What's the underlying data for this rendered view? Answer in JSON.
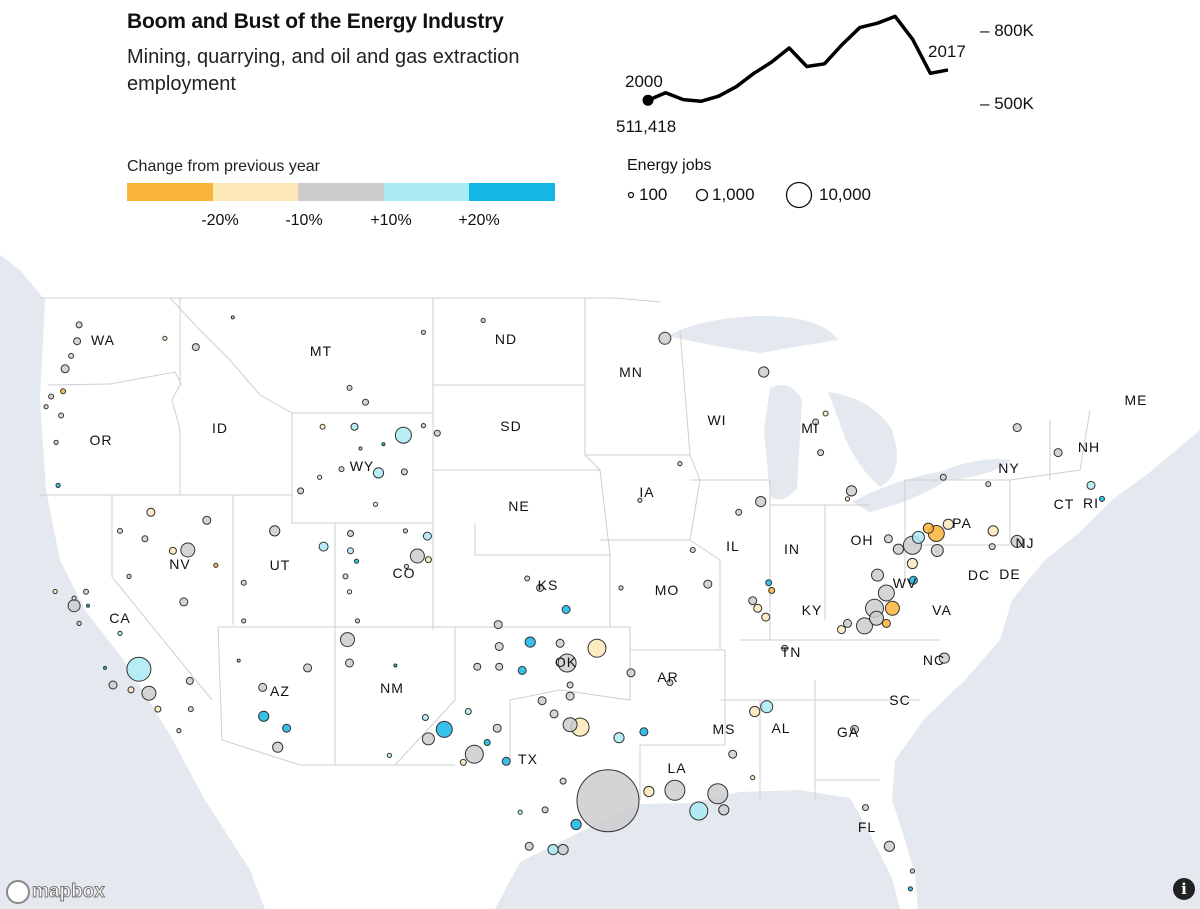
{
  "header": {
    "title": "Boom and Bust of the Energy Industry",
    "subtitle": "Mining, quarrying, and oil and gas extraction employment"
  },
  "color_legend": {
    "title": "Change from previous year",
    "ticks": [
      "-20%",
      "-10%",
      "+10%",
      "+20%"
    ],
    "colors": [
      "#FBB43B",
      "#FDE9B8",
      "#CCCCCC",
      "#AAEBF3",
      "#14B6E6"
    ]
  },
  "size_legend": {
    "title": "Energy jobs",
    "labels": [
      "100",
      "1,000",
      "10,000"
    ],
    "values": [
      100,
      1000,
      10000
    ]
  },
  "sparkline": {
    "start_label": "2000",
    "end_label": "2017",
    "start_value_label": "511,418",
    "axis_labels": [
      "800K",
      "500K"
    ]
  },
  "chart_data": [
    {
      "type": "line",
      "title": "Mining, quarrying, and oil and gas extraction employment",
      "x": [
        2000,
        2001,
        2002,
        2003,
        2004,
        2005,
        2006,
        2007,
        2008,
        2009,
        2010,
        2011,
        2012,
        2013,
        2014,
        2015,
        2016,
        2017
      ],
      "values": [
        511418,
        542000,
        514000,
        507000,
        528000,
        567000,
        622000,
        668000,
        726000,
        650000,
        661000,
        740000,
        810000,
        828000,
        856000,
        761000,
        622000,
        636000
      ],
      "yticks": [
        500000,
        800000
      ],
      "ytick_labels": [
        "500K",
        "800K"
      ],
      "grid": false
    },
    {
      "type": "scatter",
      "subtype": "bubble-map",
      "fields": [
        "lon",
        "lat",
        "jobs",
        "change_pct"
      ],
      "points": [
        [
          -121.85,
          48.15,
          150,
          0
        ],
        [
          -121.95,
          47.6,
          240,
          0
        ],
        [
          -122.25,
          47.1,
          90,
          0
        ],
        [
          -122.55,
          46.66,
          350,
          0
        ],
        [
          -122.65,
          45.88,
          90,
          -25
        ],
        [
          -123.25,
          45.7,
          90,
          0
        ],
        [
          -123.5,
          45.34,
          50,
          0
        ],
        [
          -122.75,
          45.03,
          90,
          0
        ],
        [
          -123,
          44.07,
          50,
          0
        ],
        [
          -122.9,
          42.5,
          50,
          25
        ],
        [
          -117.55,
          47.7,
          50,
          -15
        ],
        [
          -116.0,
          47.4,
          240,
          0
        ],
        [
          -114.15,
          48.4,
          20,
          0
        ],
        [
          -104.6,
          47.9,
          50,
          0
        ],
        [
          -108.3,
          46.0,
          90,
          0
        ],
        [
          -107.5,
          45.5,
          150,
          0
        ],
        [
          -109.65,
          44.63,
          90,
          -15
        ],
        [
          -108.05,
          44.63,
          240,
          15
        ],
        [
          -105.6,
          44.33,
          2700,
          15
        ],
        [
          -104.6,
          44.67,
          50,
          0
        ],
        [
          -103.9,
          44.4,
          150,
          0
        ],
        [
          -107.75,
          43.85,
          20,
          0
        ],
        [
          -106.6,
          44.0,
          20,
          25
        ],
        [
          -108.7,
          43.1,
          90,
          0
        ],
        [
          -106.85,
          42.96,
          700,
          15
        ],
        [
          -105.55,
          43.0,
          150,
          0
        ],
        [
          -109.8,
          42.8,
          50,
          -15
        ],
        [
          -110.75,
          42.3,
          150,
          0
        ],
        [
          -107.0,
          41.8,
          50,
          -15
        ],
        [
          -118.25,
          41.5,
          350,
          -15
        ],
        [
          -115.45,
          41.2,
          350,
          0
        ],
        [
          -119.8,
          40.8,
          90,
          0
        ],
        [
          -118.55,
          40.5,
          150,
          0
        ],
        [
          -117.15,
          40.04,
          240,
          -15
        ],
        [
          -116.4,
          40.07,
          1800,
          0
        ],
        [
          -115.0,
          39.48,
          50,
          -25
        ],
        [
          -119.35,
          39.05,
          50,
          0
        ],
        [
          -116.6,
          38.05,
          350,
          0
        ],
        [
          -112.05,
          40.8,
          700,
          0
        ],
        [
          -109.6,
          40.2,
          500,
          15
        ],
        [
          -113.6,
          38.8,
          90,
          0
        ],
        [
          -113.6,
          37.3,
          50,
          0
        ],
        [
          -108.25,
          40.7,
          150,
          0
        ],
        [
          -108.25,
          40.04,
          150,
          15
        ],
        [
          -107.95,
          39.64,
          50,
          25
        ],
        [
          -108.5,
          39.05,
          90,
          0
        ],
        [
          -108.3,
          38.45,
          50,
          -15
        ],
        [
          -107.9,
          37.3,
          50,
          0
        ],
        [
          -105.5,
          40.8,
          50,
          0
        ],
        [
          -104.4,
          40.6,
          350,
          15
        ],
        [
          -104.9,
          39.84,
          1800,
          0
        ],
        [
          -104.35,
          39.7,
          150,
          -15
        ],
        [
          -105.45,
          39.44,
          50,
          0
        ],
        [
          -123.05,
          38.46,
          50,
          -15
        ],
        [
          -122.1,
          38.2,
          50,
          0
        ],
        [
          -122.1,
          37.9,
          1150,
          0
        ],
        [
          -121.4,
          37.9,
          20,
          25
        ],
        [
          -121.5,
          38.45,
          90,
          0
        ],
        [
          -121.85,
          37.2,
          50,
          0
        ],
        [
          -119.8,
          36.8,
          50,
          15
        ],
        [
          -120.55,
          35.4,
          20,
          25
        ],
        [
          -118.85,
          35.35,
          8900,
          15
        ],
        [
          -120.15,
          34.7,
          350,
          0
        ],
        [
          -119.25,
          34.5,
          150,
          -15
        ],
        [
          -118.35,
          34.36,
          1800,
          0
        ],
        [
          -116.3,
          34.87,
          240,
          0
        ],
        [
          -117.9,
          33.7,
          150,
          -15
        ],
        [
          -116.25,
          33.7,
          90,
          0
        ],
        [
          -116.85,
          32.8,
          50,
          0
        ],
        [
          -113.85,
          35.7,
          20,
          0
        ],
        [
          -110.4,
          35.4,
          350,
          0
        ],
        [
          -112.65,
          34.6,
          350,
          0
        ],
        [
          -112.6,
          33.4,
          700,
          25
        ],
        [
          -111.45,
          32.9,
          350,
          25
        ],
        [
          -111.9,
          32.1,
          700,
          0
        ],
        [
          -108.4,
          36.55,
          1800,
          0
        ],
        [
          -108.3,
          35.6,
          350,
          0
        ],
        [
          -106.0,
          35.5,
          20,
          25
        ],
        [
          -104.5,
          33.35,
          150,
          15
        ],
        [
          -103.55,
          32.85,
          2700,
          25
        ],
        [
          -104.35,
          32.45,
          1150,
          0
        ],
        [
          -106.3,
          31.75,
          50,
          15
        ],
        [
          -100.85,
          37.15,
          350,
          0
        ],
        [
          -99.25,
          36.45,
          700,
          25
        ],
        [
          -100.8,
          36.27,
          350,
          0
        ],
        [
          -97.75,
          36.4,
          350,
          0
        ],
        [
          -95.9,
          36.2,
          3800,
          -15
        ],
        [
          -97.4,
          35.6,
          3800,
          0
        ],
        [
          -99.65,
          35.3,
          350,
          25
        ],
        [
          -101.9,
          35.45,
          240,
          0
        ],
        [
          -100.8,
          35.45,
          240,
          0
        ],
        [
          -97.25,
          34.7,
          150,
          0
        ],
        [
          -97.25,
          34.24,
          350,
          0
        ],
        [
          -94.2,
          35.2,
          350,
          0
        ],
        [
          -92.25,
          34.8,
          150,
          0
        ],
        [
          -98.65,
          34.05,
          350,
          0
        ],
        [
          -102.35,
          33.6,
          150,
          15
        ],
        [
          -102.05,
          31.8,
          3800,
          0
        ],
        [
          -102.6,
          31.45,
          150,
          -15
        ],
        [
          -101.4,
          32.3,
          150,
          25
        ],
        [
          -100.45,
          31.5,
          350,
          25
        ],
        [
          -97.25,
          33.05,
          1800,
          0
        ],
        [
          -96.75,
          32.95,
          3800,
          -15
        ],
        [
          -98.05,
          33.5,
          350,
          0
        ],
        [
          -100.9,
          32.9,
          350,
          0
        ],
        [
          -95.35,
          29.8,
          144000,
          0
        ],
        [
          -96.95,
          28.76,
          700,
          25
        ],
        [
          -97.6,
          30.65,
          150,
          0
        ],
        [
          -98.1,
          27.65,
          700,
          15
        ],
        [
          -97.6,
          27.65,
          700,
          0
        ],
        [
          -99.3,
          27.8,
          350,
          0
        ],
        [
          -99.75,
          29.3,
          50,
          15
        ],
        [
          -98.5,
          29.4,
          150,
          0
        ],
        [
          -94.8,
          32.5,
          700,
          15
        ],
        [
          -93.55,
          32.75,
          350,
          25
        ],
        [
          -92.0,
          30.25,
          5200,
          0
        ],
        [
          -90.8,
          29.35,
          3800,
          15
        ],
        [
          -89.85,
          30.1,
          5200,
          0
        ],
        [
          -89.55,
          29.4,
          700,
          0
        ],
        [
          -93.3,
          30.2,
          700,
          -15
        ],
        [
          -89.1,
          31.8,
          350,
          0
        ],
        [
          -88.1,
          30.8,
          50,
          -15
        ],
        [
          -92.5,
          47.7,
          1150,
          0
        ],
        [
          -87.55,
          46.55,
          700,
          0
        ],
        [
          -87.7,
          41.9,
          700,
          0
        ],
        [
          -88.8,
          41.5,
          150,
          0
        ],
        [
          -91.1,
          40.07,
          90,
          0
        ],
        [
          -90.35,
          38.75,
          350,
          0
        ],
        [
          -87.3,
          38.8,
          150,
          25
        ],
        [
          -87.15,
          38.5,
          150,
          -25
        ],
        [
          -87.85,
          37.8,
          350,
          -15
        ],
        [
          -87.45,
          37.45,
          350,
          -15
        ],
        [
          -88.1,
          38.1,
          350,
          0
        ],
        [
          -84.45,
          45.1,
          90,
          -15
        ],
        [
          -84.95,
          44.8,
          150,
          0
        ],
        [
          -84.7,
          43.7,
          150,
          0
        ],
        [
          -83.15,
          42.3,
          700,
          0
        ],
        [
          -83.35,
          42.0,
          50,
          -15
        ],
        [
          -81.3,
          40.5,
          350,
          0
        ],
        [
          -80.8,
          40.1,
          700,
          0
        ],
        [
          -80.1,
          40.25,
          3800,
          0
        ],
        [
          -79.8,
          40.55,
          1150,
          15
        ],
        [
          -79.3,
          40.9,
          700,
          -25
        ],
        [
          -78.9,
          40.7,
          2700,
          -25
        ],
        [
          -78.3,
          41.05,
          700,
          -15
        ],
        [
          -76.05,
          40.8,
          700,
          -15
        ],
        [
          -78.85,
          40.05,
          1150,
          0
        ],
        [
          -80.1,
          39.55,
          700,
          -15
        ],
        [
          -81.85,
          39.1,
          1150,
          0
        ],
        [
          -80.05,
          38.9,
          350,
          25
        ],
        [
          -81.4,
          38.4,
          2700,
          0
        ],
        [
          -82.0,
          37.8,
          3800,
          0
        ],
        [
          -81.1,
          37.8,
          1800,
          -25
        ],
        [
          -81.9,
          37.4,
          1800,
          0
        ],
        [
          -82.5,
          37.1,
          2700,
          0
        ],
        [
          -83.35,
          37.2,
          350,
          0
        ],
        [
          -83.65,
          36.95,
          350,
          -15
        ],
        [
          -81.4,
          37.2,
          350,
          -25
        ],
        [
          -74.85,
          44.6,
          350,
          0
        ],
        [
          -72.8,
          43.7,
          350,
          0
        ],
        [
          -74.85,
          40.4,
          1150,
          0
        ],
        [
          -71.15,
          42.5,
          350,
          15
        ],
        [
          -70.6,
          42.0,
          90,
          25
        ],
        [
          -78.55,
          42.8,
          150,
          0
        ],
        [
          -76.3,
          42.55,
          90,
          0
        ],
        [
          -76.1,
          40.2,
          150,
          0
        ],
        [
          -88.0,
          33.6,
          700,
          -15
        ],
        [
          -87.4,
          33.8,
          1150,
          15
        ],
        [
          -83.0,
          32.85,
          350,
          0
        ],
        [
          -82.45,
          29.5,
          150,
          0
        ],
        [
          -81.25,
          27.8,
          700,
          0
        ],
        [
          -80.2,
          25.9,
          50,
          25
        ],
        [
          -80.1,
          26.7,
          50,
          0
        ],
        [
          -86.5,
          36.2,
          150,
          0
        ],
        [
          -78.5,
          35.8,
          700,
          0
        ],
        [
          -101.6,
          48.3,
          50,
          0
        ],
        [
          -91.75,
          43.3,
          50,
          0
        ],
        [
          -93.75,
          41.95,
          50,
          0
        ],
        [
          -99.4,
          38.97,
          90,
          0
        ],
        [
          -98.75,
          38.6,
          240,
          0
        ],
        [
          -97.45,
          37.75,
          350,
          25
        ],
        [
          -94.7,
          38.6,
          50,
          0
        ]
      ]
    }
  ],
  "map": {
    "states": [
      "WA",
      "OR",
      "CA",
      "NV",
      "ID",
      "MT",
      "WY",
      "UT",
      "CO",
      "AZ",
      "NM",
      "ND",
      "SD",
      "NE",
      "KS",
      "OK",
      "TX",
      "MN",
      "IA",
      "MO",
      "AR",
      "LA",
      "WI",
      "IL",
      "MI",
      "IN",
      "KY",
      "TN",
      "MS",
      "AL",
      "GA",
      "FL",
      "SC",
      "NC",
      "VA",
      "WV",
      "OH",
      "PA",
      "NY",
      "ME",
      "NH",
      "CT",
      "RI",
      "NJ",
      "DE",
      "DC"
    ],
    "colors": {
      "water": "#E3E9EF",
      "land": "#FFFFFF",
      "border": "#CFCFCF"
    },
    "attribution": "mapbox",
    "info_label": "i"
  }
}
